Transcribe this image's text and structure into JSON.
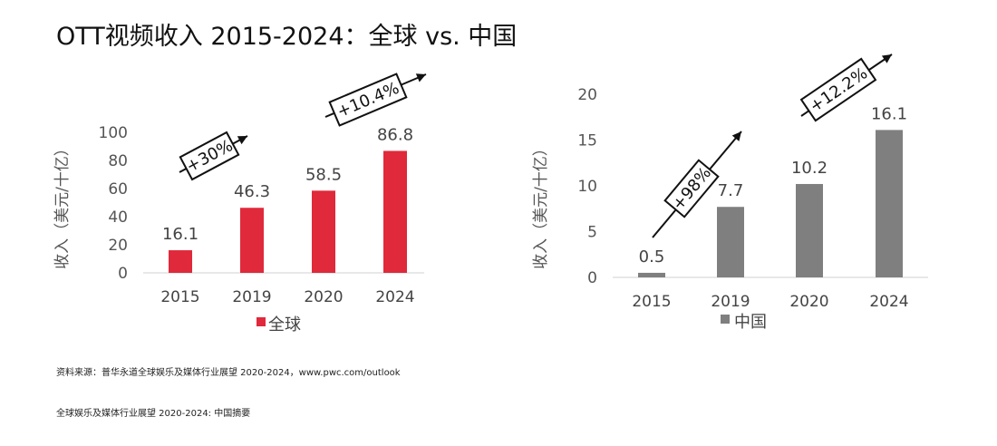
{
  "page": {
    "title": "OTT视频收入 2015-2024：全球 vs. 中国",
    "source_note": "资料来源：普华永道全球娱乐及媒体行业展望 2020-2024，www.pwc.com/outlook",
    "footer_note": "全球娱乐及媒体行业展望 2020-2024: 中国摘要"
  },
  "colors": {
    "global_bar": "#e0293b",
    "china_bar": "#7f7f7f",
    "text": "#444444"
  },
  "chart_data": [
    {
      "type": "bar",
      "categories": [
        "2015",
        "2019",
        "2020",
        "2024"
      ],
      "series": [
        {
          "name": "全球",
          "values": [
            16.1,
            46.3,
            58.5,
            86.8
          ],
          "color": "#e0293b"
        }
      ],
      "data_labels": [
        "16.1",
        "46.3",
        "58.5",
        "86.8"
      ],
      "ylabel": "收入（美元/十亿）",
      "ylim": [
        0,
        100
      ],
      "yticks": [
        0,
        20,
        40,
        60,
        80,
        100
      ],
      "grid": false,
      "legend": "bottom",
      "annotations": [
        {
          "text": "+30%",
          "from": "2015",
          "to": "2019"
        },
        {
          "text": "+10.4%",
          "from": "2020",
          "to": "2024"
        }
      ]
    },
    {
      "type": "bar",
      "categories": [
        "2015",
        "2019",
        "2020",
        "2024"
      ],
      "series": [
        {
          "name": "中国",
          "values": [
            0.5,
            7.7,
            10.2,
            16.1
          ],
          "color": "#7f7f7f"
        }
      ],
      "data_labels": [
        "0.5",
        "7.7",
        "10.2",
        "16.1"
      ],
      "ylabel": "收入（美元/十亿）",
      "ylim": [
        0,
        20
      ],
      "yticks": [
        0,
        5,
        10,
        15,
        20
      ],
      "grid": false,
      "legend": "bottom",
      "annotations": [
        {
          "text": "+98%",
          "from": "2015",
          "to": "2019"
        },
        {
          "text": "+12.2%",
          "from": "2020",
          "to": "2024"
        }
      ]
    }
  ]
}
